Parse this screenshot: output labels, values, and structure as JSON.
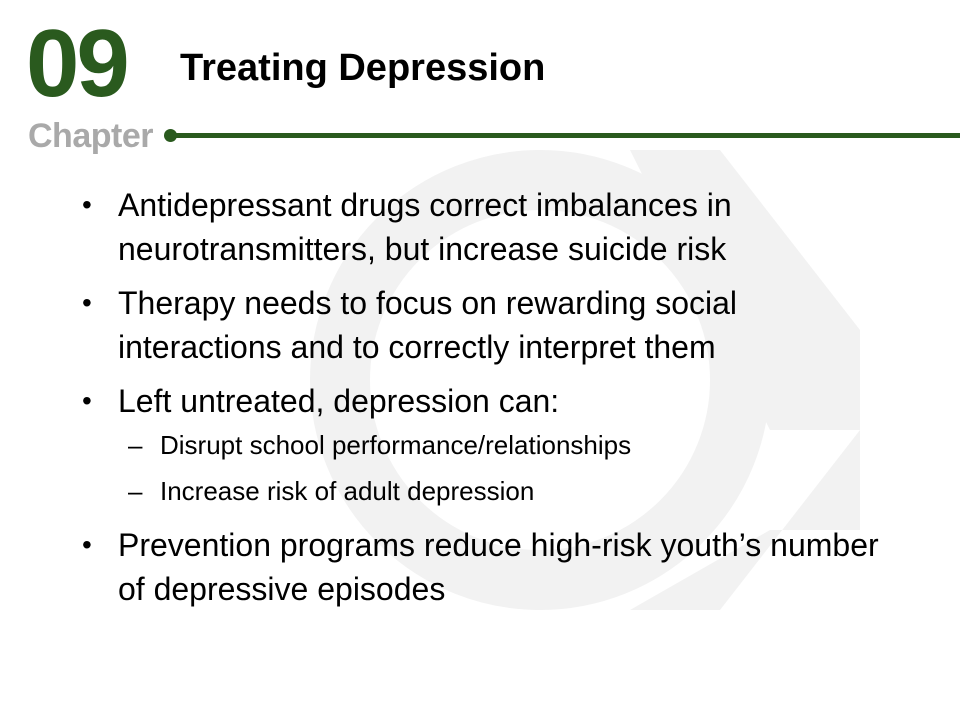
{
  "chapter": {
    "number": "09",
    "word": "Chapter"
  },
  "title": "Treating Depression",
  "colors": {
    "accent": "#2a5a1e",
    "chapter_word": "#a9a9a9",
    "watermark": "#f3f3f3"
  },
  "bullets": [
    {
      "text": "Antidepressant drugs correct imbalances in neurotransmitters, but increase suicide risk"
    },
    {
      "text": "Therapy needs to focus on rewarding social interactions and to correctly interpret them"
    },
    {
      "text": "Left untreated, depression can:",
      "subitems": [
        "Disrupt school performance/relationships",
        "Increase risk of adult depression"
      ]
    },
    {
      "text": "Prevention programs reduce high-risk youth’s number of depressive episodes"
    }
  ],
  "bullet_glyph": "•",
  "subbullet_glyph": "–"
}
